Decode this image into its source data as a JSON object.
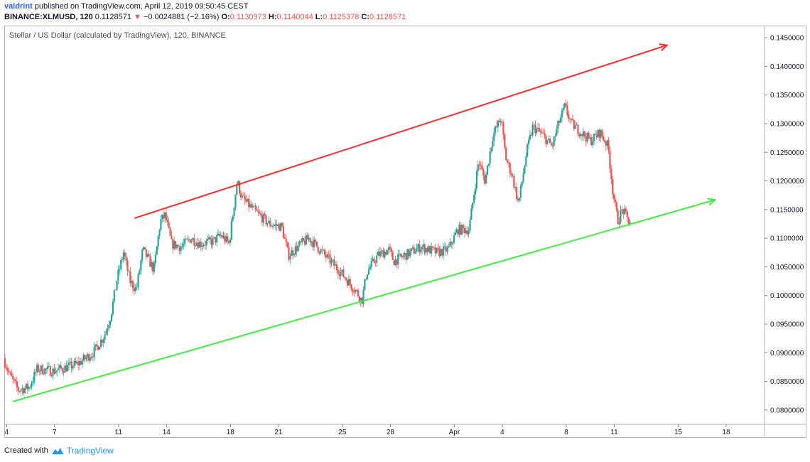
{
  "header": {
    "author": "valdrint",
    "published": "published on TradingView.com, April 12, 2019 09:50:45 CEST",
    "symbol": "BINANCE:XLMUSD, 120",
    "last": "0.1128571",
    "change": "−0.0024881 (−2.16%)",
    "o_label": "O:",
    "o": "0.1130973",
    "h_label": "H:",
    "h": "0.1140044",
    "l_label": "L:",
    "l": "0.1125378",
    "c_label": "C:",
    "c": "0.1128571"
  },
  "pane_title": "Stellar / US Dollar (calculated by TradingView), 120, BINANCE",
  "footer": {
    "created_with": "Created with",
    "brand": "TradingView"
  },
  "colors": {
    "up": "#26a69a",
    "down": "#ef5350",
    "resistance": "#ff2a2a",
    "support": "#3cf03c",
    "grid": "#e0e3eb"
  },
  "chart_data": {
    "type": "candlestick",
    "title": "Stellar / US Dollar (calculated by TradingView), 120, BINANCE",
    "x_ticks": [
      {
        "label": "4",
        "day": 4
      },
      {
        "label": "7",
        "day": 7
      },
      {
        "label": "11",
        "day": 11
      },
      {
        "label": "14",
        "day": 14
      },
      {
        "label": "18",
        "day": 18
      },
      {
        "label": "21",
        "day": 21
      },
      {
        "label": "25",
        "day": 25
      },
      {
        "label": "28",
        "day": 28
      },
      {
        "label": "Apr",
        "day": 32
      },
      {
        "label": "4",
        "day": 35
      },
      {
        "label": "8",
        "day": 39
      },
      {
        "label": "11",
        "day": 42
      },
      {
        "label": "15",
        "day": 46
      },
      {
        "label": "18",
        "day": 49
      }
    ],
    "y_ticks": [
      "0.1450000",
      "0.1400000",
      "0.1350000",
      "0.1300000",
      "0.1250000",
      "0.1200000",
      "0.1150000",
      "0.1100000",
      "0.1050000",
      "0.1000000",
      "0.0950000",
      "0.0900000",
      "0.0850000",
      "0.0800000"
    ],
    "ylim": [
      0.0775,
      0.147
    ],
    "xlim": [
      3.9,
      51.4
    ],
    "anchors": [
      [
        3.9,
        0.089
      ],
      [
        4.3,
        0.086
      ],
      [
        4.8,
        0.0835
      ],
      [
        5.5,
        0.084
      ],
      [
        6.0,
        0.0872
      ],
      [
        7.0,
        0.0868
      ],
      [
        8.5,
        0.088
      ],
      [
        9.5,
        0.09
      ],
      [
        10.2,
        0.093
      ],
      [
        10.6,
        0.0965
      ],
      [
        11.0,
        0.103
      ],
      [
        11.4,
        0.1075
      ],
      [
        11.8,
        0.1025
      ],
      [
        12.2,
        0.101
      ],
      [
        12.6,
        0.108
      ],
      [
        13.0,
        0.106
      ],
      [
        13.3,
        0.1045
      ],
      [
        13.7,
        0.113
      ],
      [
        14.0,
        0.114
      ],
      [
        14.4,
        0.109
      ],
      [
        15.0,
        0.1085
      ],
      [
        15.6,
        0.11
      ],
      [
        16.2,
        0.109
      ],
      [
        17.0,
        0.1095
      ],
      [
        17.5,
        0.1105
      ],
      [
        18.0,
        0.109
      ],
      [
        18.5,
        0.12
      ],
      [
        18.8,
        0.117
      ],
      [
        19.5,
        0.115
      ],
      [
        20.5,
        0.1125
      ],
      [
        21.3,
        0.112
      ],
      [
        21.7,
        0.107
      ],
      [
        22.5,
        0.109
      ],
      [
        23.0,
        0.11
      ],
      [
        24.0,
        0.107
      ],
      [
        25.0,
        0.104
      ],
      [
        26.0,
        0.1005
      ],
      [
        26.3,
        0.099
      ],
      [
        26.6,
        0.104
      ],
      [
        27.3,
        0.107
      ],
      [
        28.0,
        0.108
      ],
      [
        28.3,
        0.106
      ],
      [
        29.0,
        0.107
      ],
      [
        30.0,
        0.1085
      ],
      [
        31.0,
        0.1075
      ],
      [
        31.7,
        0.108
      ],
      [
        32.3,
        0.1115
      ],
      [
        33.0,
        0.1115
      ],
      [
        33.6,
        0.1235
      ],
      [
        34.0,
        0.12
      ],
      [
        34.5,
        0.128
      ],
      [
        35.0,
        0.131
      ],
      [
        35.3,
        0.124
      ],
      [
        35.7,
        0.121
      ],
      [
        36.1,
        0.116
      ],
      [
        36.6,
        0.125
      ],
      [
        37.0,
        0.1295
      ],
      [
        37.6,
        0.128
      ],
      [
        38.2,
        0.126
      ],
      [
        38.6,
        0.13
      ],
      [
        39.0,
        0.133
      ],
      [
        39.4,
        0.13
      ],
      [
        40.0,
        0.1285
      ],
      [
        40.6,
        0.127
      ],
      [
        41.2,
        0.1285
      ],
      [
        41.7,
        0.126
      ],
      [
        42.0,
        0.118
      ],
      [
        42.3,
        0.113
      ],
      [
        42.6,
        0.115
      ],
      [
        43.0,
        0.1129
      ]
    ],
    "trendlines": [
      {
        "name": "resistance",
        "color": "#ff2a2a",
        "from": [
          12.0,
          0.1135
        ],
        "to": [
          45.3,
          0.1437
        ],
        "arrow": true
      },
      {
        "name": "support",
        "color": "#3cf03c",
        "from": [
          4.4,
          0.0815
        ],
        "to": [
          48.3,
          0.1167
        ],
        "arrow": true
      }
    ]
  }
}
